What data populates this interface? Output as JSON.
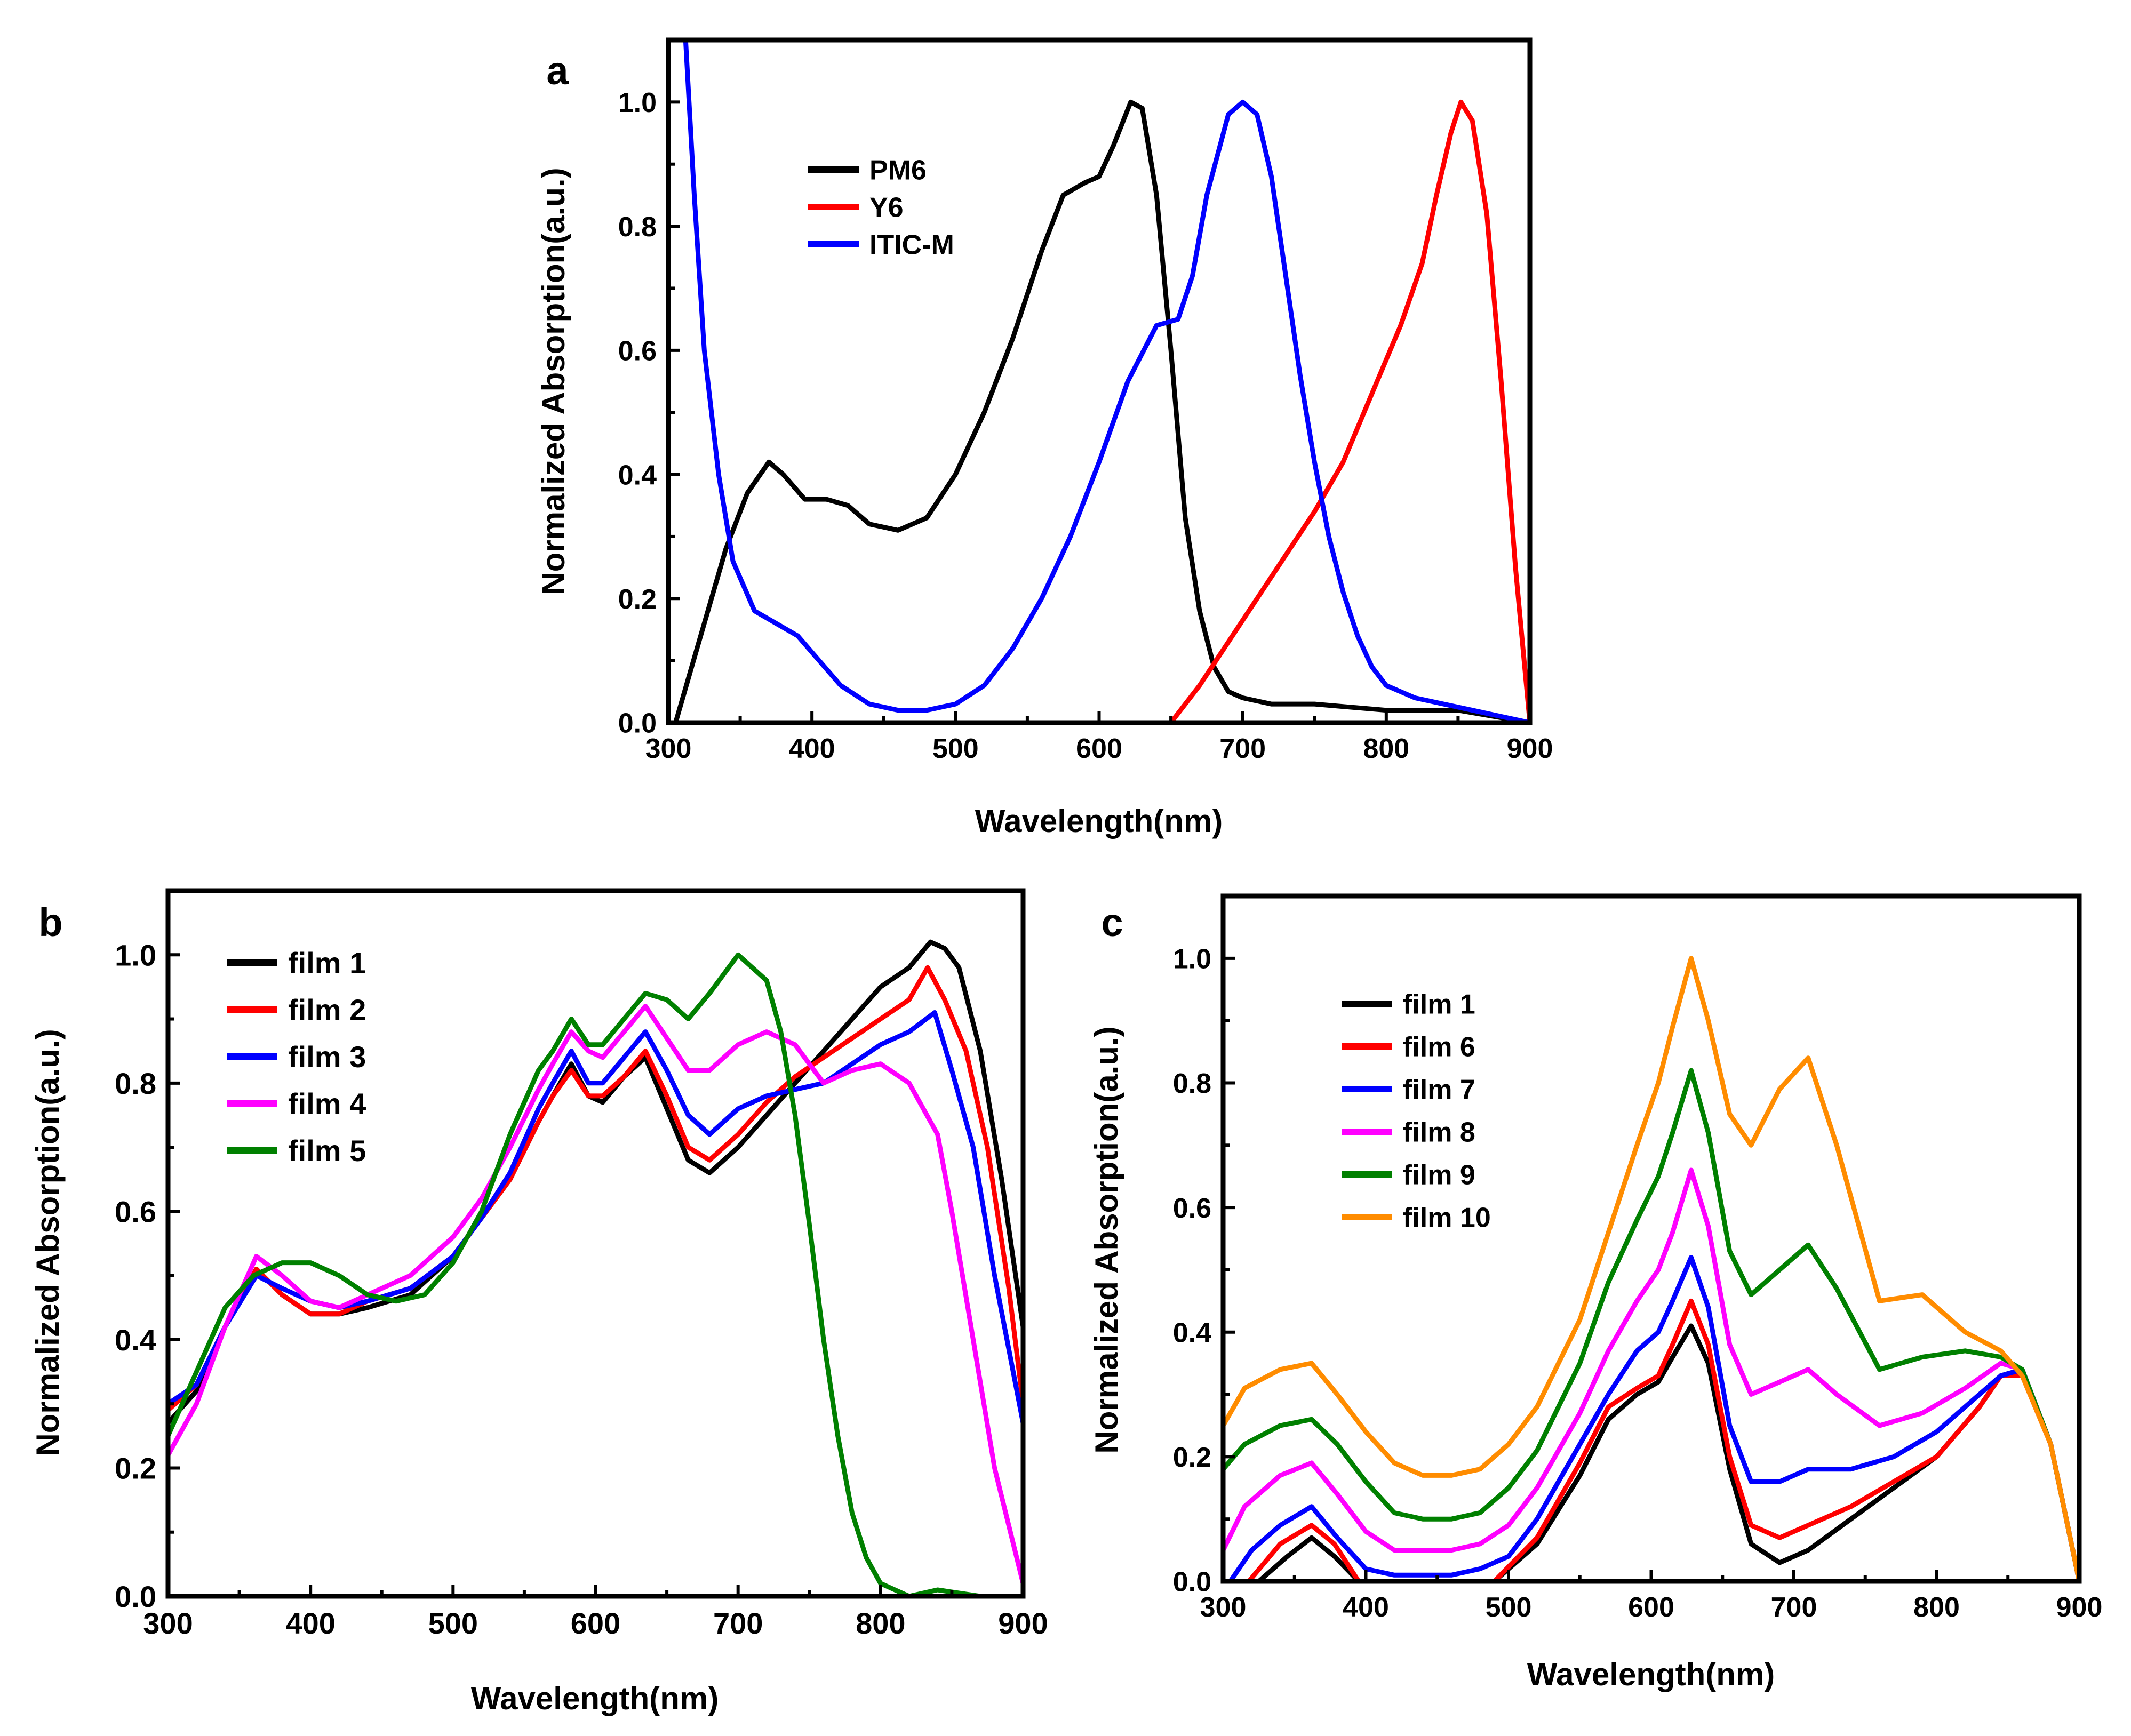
{
  "chart_data": [
    {
      "panel": "a",
      "type": "line",
      "xlabel": "Wavelength(nm)",
      "ylabel": "Normalized Absorption(a.u.)",
      "xlim": [
        300,
        900
      ],
      "ylim": [
        0.0,
        1.1
      ],
      "xticks": [
        300,
        400,
        500,
        600,
        700,
        800,
        900
      ],
      "xtick_labels": [
        "300",
        "400",
        "500",
        "600",
        "700",
        "800",
        "900"
      ],
      "yticks": [
        0.0,
        0.2,
        0.4,
        0.6,
        0.8,
        1.0
      ],
      "ytick_labels": [
        "0.0",
        "0.2",
        "0.4",
        "0.6",
        "0.8",
        "1.0"
      ],
      "legend_position": "upper-left",
      "series": [
        {
          "name": "PM6",
          "color": "#000000",
          "x": [
            305,
            320,
            340,
            355,
            370,
            380,
            395,
            410,
            425,
            440,
            460,
            480,
            500,
            520,
            540,
            560,
            575,
            590,
            600,
            610,
            622,
            630,
            640,
            650,
            660,
            670,
            680,
            690,
            700,
            720,
            750,
            800,
            850,
            900
          ],
          "y": [
            0.0,
            0.12,
            0.28,
            0.37,
            0.42,
            0.4,
            0.36,
            0.36,
            0.35,
            0.32,
            0.31,
            0.33,
            0.4,
            0.5,
            0.62,
            0.76,
            0.85,
            0.87,
            0.88,
            0.93,
            1.0,
            0.99,
            0.85,
            0.6,
            0.33,
            0.18,
            0.09,
            0.05,
            0.04,
            0.03,
            0.03,
            0.02,
            0.02,
            0.0
          ]
        },
        {
          "name": "Y6",
          "color": "#ff0000",
          "x": [
            650,
            670,
            690,
            710,
            730,
            750,
            770,
            790,
            810,
            825,
            835,
            845,
            852,
            860,
            870,
            880,
            890,
            900
          ],
          "y": [
            0.0,
            0.06,
            0.13,
            0.2,
            0.27,
            0.34,
            0.42,
            0.53,
            0.64,
            0.74,
            0.85,
            0.95,
            1.0,
            0.97,
            0.82,
            0.55,
            0.25,
            0.0
          ]
        },
        {
          "name": "ITIC-M",
          "color": "#0000ff",
          "x": [
            312,
            318,
            325,
            335,
            345,
            360,
            375,
            390,
            405,
            420,
            440,
            460,
            480,
            500,
            520,
            540,
            560,
            580,
            600,
            620,
            640,
            655,
            665,
            675,
            690,
            700,
            710,
            720,
            730,
            740,
            750,
            760,
            770,
            780,
            790,
            800,
            820,
            840,
            860,
            880,
            900
          ],
          "y": [
            1.1,
            0.85,
            0.6,
            0.4,
            0.26,
            0.18,
            0.16,
            0.14,
            0.1,
            0.06,
            0.03,
            0.02,
            0.02,
            0.03,
            0.06,
            0.12,
            0.2,
            0.3,
            0.42,
            0.55,
            0.64,
            0.65,
            0.72,
            0.85,
            0.98,
            1.0,
            0.98,
            0.88,
            0.72,
            0.56,
            0.42,
            0.3,
            0.21,
            0.14,
            0.09,
            0.06,
            0.04,
            0.03,
            0.02,
            0.01,
            0.0
          ]
        }
      ]
    },
    {
      "panel": "b",
      "type": "line",
      "xlabel": "Wavelength(nm)",
      "ylabel": "Normalized Absorption(a.u.)",
      "xlim": [
        300,
        900
      ],
      "ylim": [
        0.0,
        1.1
      ],
      "xticks": [
        300,
        400,
        500,
        600,
        700,
        800,
        900
      ],
      "xtick_labels": [
        "300",
        "400",
        "500",
        "600",
        "700",
        "800",
        "900"
      ],
      "yticks": [
        0.0,
        0.2,
        0.4,
        0.6,
        0.8,
        1.0
      ],
      "ytick_labels": [
        "0.0",
        "0.2",
        "0.4",
        "0.6",
        "0.8",
        "1.0"
      ],
      "legend_position": "upper-left",
      "series": [
        {
          "name": "film 1",
          "color": "#000000",
          "x": [
            300,
            320,
            340,
            362,
            380,
            400,
            420,
            440,
            470,
            500,
            520,
            540,
            560,
            570,
            583,
            595,
            605,
            620,
            635,
            650,
            665,
            680,
            700,
            720,
            740,
            760,
            780,
            800,
            820,
            835,
            845,
            855,
            870,
            885,
            900
          ],
          "y": [
            0.27,
            0.32,
            0.42,
            0.51,
            0.47,
            0.44,
            0.44,
            0.45,
            0.47,
            0.53,
            0.59,
            0.65,
            0.74,
            0.78,
            0.83,
            0.78,
            0.77,
            0.81,
            0.84,
            0.76,
            0.68,
            0.66,
            0.7,
            0.75,
            0.8,
            0.85,
            0.9,
            0.95,
            0.98,
            1.02,
            1.01,
            0.98,
            0.85,
            0.65,
            0.42
          ]
        },
        {
          "name": "film 2",
          "color": "#ff0000",
          "x": [
            300,
            320,
            340,
            362,
            380,
            400,
            420,
            440,
            470,
            500,
            520,
            540,
            560,
            570,
            583,
            595,
            605,
            620,
            635,
            650,
            665,
            680,
            700,
            720,
            740,
            760,
            780,
            800,
            820,
            833,
            845,
            860,
            875,
            890,
            900
          ],
          "y": [
            0.29,
            0.33,
            0.42,
            0.51,
            0.47,
            0.44,
            0.44,
            0.46,
            0.48,
            0.53,
            0.59,
            0.65,
            0.74,
            0.78,
            0.82,
            0.78,
            0.78,
            0.81,
            0.85,
            0.78,
            0.7,
            0.68,
            0.72,
            0.77,
            0.81,
            0.84,
            0.87,
            0.9,
            0.93,
            0.98,
            0.93,
            0.85,
            0.7,
            0.48,
            0.3
          ]
        },
        {
          "name": "film 3",
          "color": "#0000ff",
          "x": [
            300,
            320,
            340,
            362,
            380,
            400,
            420,
            440,
            470,
            500,
            520,
            540,
            560,
            570,
            583,
            595,
            605,
            620,
            635,
            650,
            665,
            680,
            700,
            720,
            740,
            760,
            780,
            800,
            820,
            838,
            850,
            865,
            880,
            900
          ],
          "y": [
            0.3,
            0.33,
            0.42,
            0.5,
            0.48,
            0.46,
            0.45,
            0.46,
            0.48,
            0.53,
            0.59,
            0.66,
            0.76,
            0.8,
            0.85,
            0.8,
            0.8,
            0.84,
            0.88,
            0.82,
            0.75,
            0.72,
            0.76,
            0.78,
            0.79,
            0.8,
            0.83,
            0.86,
            0.88,
            0.91,
            0.82,
            0.7,
            0.5,
            0.27
          ]
        },
        {
          "name": "film 4",
          "color": "#ff00ff",
          "x": [
            300,
            320,
            340,
            362,
            380,
            400,
            420,
            440,
            470,
            500,
            520,
            540,
            560,
            570,
            583,
            595,
            605,
            620,
            635,
            650,
            665,
            680,
            700,
            720,
            740,
            760,
            780,
            800,
            820,
            830,
            840,
            850,
            865,
            880,
            900
          ],
          "y": [
            0.22,
            0.3,
            0.42,
            0.53,
            0.5,
            0.46,
            0.45,
            0.47,
            0.5,
            0.56,
            0.62,
            0.7,
            0.79,
            0.83,
            0.88,
            0.85,
            0.84,
            0.88,
            0.92,
            0.87,
            0.82,
            0.82,
            0.86,
            0.88,
            0.86,
            0.8,
            0.82,
            0.83,
            0.8,
            0.76,
            0.72,
            0.6,
            0.4,
            0.2,
            0.02
          ]
        },
        {
          "name": "film 5",
          "color": "#008000",
          "x": [
            300,
            320,
            340,
            360,
            380,
            400,
            420,
            440,
            460,
            480,
            500,
            520,
            540,
            560,
            570,
            583,
            595,
            605,
            620,
            635,
            650,
            665,
            680,
            700,
            720,
            730,
            740,
            750,
            760,
            770,
            780,
            790,
            800,
            820,
            840,
            870,
            900
          ],
          "y": [
            0.25,
            0.35,
            0.45,
            0.5,
            0.52,
            0.52,
            0.5,
            0.47,
            0.46,
            0.47,
            0.52,
            0.6,
            0.72,
            0.82,
            0.85,
            0.9,
            0.86,
            0.86,
            0.9,
            0.94,
            0.93,
            0.9,
            0.94,
            1.0,
            0.96,
            0.88,
            0.75,
            0.58,
            0.4,
            0.25,
            0.13,
            0.06,
            0.02,
            0.0,
            0.01,
            0.0,
            0.0
          ]
        }
      ]
    },
    {
      "panel": "c",
      "type": "line",
      "xlabel": "Wavelength(nm)",
      "ylabel": "Normalized Absorption(a.u.)",
      "xlim": [
        300,
        900
      ],
      "ylim": [
        0.0,
        1.1
      ],
      "xticks": [
        300,
        400,
        500,
        600,
        700,
        800,
        900
      ],
      "xtick_labels": [
        "300",
        "400",
        "500",
        "600",
        "700",
        "800",
        "900"
      ],
      "yticks": [
        0.0,
        0.2,
        0.4,
        0.6,
        0.8,
        1.0
      ],
      "ytick_labels": [
        "0.0",
        "0.2",
        "0.4",
        "0.6",
        "0.8",
        "1.0"
      ],
      "legend_position": "upper-left",
      "series": [
        {
          "name": "film 1",
          "color": "#000000",
          "x": [
            325,
            345,
            362,
            378,
            395,
            420,
            460,
            490,
            520,
            550,
            570,
            590,
            605,
            615,
            628,
            640,
            655,
            670,
            690,
            710,
            740,
            770,
            800,
            830,
            845,
            860,
            880,
            900
          ],
          "y": [
            0.0,
            0.04,
            0.07,
            0.04,
            0.0,
            0.0,
            0.0,
            0.0,
            0.06,
            0.17,
            0.26,
            0.3,
            0.32,
            0.36,
            0.41,
            0.35,
            0.18,
            0.06,
            0.03,
            0.05,
            0.1,
            0.15,
            0.2,
            0.28,
            0.33,
            0.34,
            0.22,
            0.0
          ]
        },
        {
          "name": "film 6",
          "color": "#ff0000",
          "x": [
            318,
            340,
            362,
            378,
            395,
            420,
            460,
            490,
            520,
            550,
            570,
            590,
            605,
            615,
            628,
            640,
            655,
            670,
            690,
            710,
            740,
            770,
            800,
            830,
            845,
            860,
            880,
            900
          ],
          "y": [
            0.0,
            0.06,
            0.09,
            0.06,
            0.0,
            0.0,
            0.0,
            0.0,
            0.07,
            0.19,
            0.28,
            0.31,
            0.33,
            0.38,
            0.45,
            0.38,
            0.2,
            0.09,
            0.07,
            0.09,
            0.12,
            0.16,
            0.2,
            0.28,
            0.33,
            0.33,
            0.22,
            0.0
          ]
        },
        {
          "name": "film 7",
          "color": "#0000ff",
          "x": [
            305,
            320,
            340,
            362,
            380,
            400,
            420,
            440,
            460,
            480,
            500,
            520,
            550,
            570,
            590,
            605,
            615,
            628,
            640,
            655,
            670,
            690,
            710,
            740,
            770,
            800,
            830,
            845,
            860,
            880,
            900
          ],
          "y": [
            0.0,
            0.05,
            0.09,
            0.12,
            0.07,
            0.02,
            0.01,
            0.01,
            0.01,
            0.02,
            0.04,
            0.1,
            0.22,
            0.3,
            0.37,
            0.4,
            0.45,
            0.52,
            0.44,
            0.25,
            0.16,
            0.16,
            0.18,
            0.18,
            0.2,
            0.24,
            0.3,
            0.33,
            0.34,
            0.22,
            0.0
          ]
        },
        {
          "name": "film 8",
          "color": "#ff00ff",
          "x": [
            300,
            315,
            340,
            362,
            380,
            400,
            420,
            440,
            460,
            480,
            500,
            520,
            550,
            570,
            590,
            605,
            615,
            628,
            640,
            655,
            670,
            690,
            710,
            730,
            760,
            790,
            820,
            845,
            860,
            880,
            900
          ],
          "y": [
            0.05,
            0.12,
            0.17,
            0.19,
            0.14,
            0.08,
            0.05,
            0.05,
            0.05,
            0.06,
            0.09,
            0.15,
            0.27,
            0.37,
            0.45,
            0.5,
            0.56,
            0.66,
            0.57,
            0.38,
            0.3,
            0.32,
            0.34,
            0.3,
            0.25,
            0.27,
            0.31,
            0.35,
            0.34,
            0.22,
            0.0
          ]
        },
        {
          "name": "film 9",
          "color": "#008000",
          "x": [
            300,
            315,
            340,
            362,
            380,
            400,
            420,
            440,
            460,
            480,
            500,
            520,
            550,
            570,
            590,
            605,
            615,
            628,
            640,
            655,
            670,
            690,
            710,
            730,
            760,
            790,
            820,
            845,
            860,
            880,
            900
          ],
          "y": [
            0.18,
            0.22,
            0.25,
            0.26,
            0.22,
            0.16,
            0.11,
            0.1,
            0.1,
            0.11,
            0.15,
            0.21,
            0.35,
            0.48,
            0.58,
            0.65,
            0.72,
            0.82,
            0.72,
            0.53,
            0.46,
            0.5,
            0.54,
            0.47,
            0.34,
            0.36,
            0.37,
            0.36,
            0.34,
            0.22,
            0.0
          ]
        },
        {
          "name": "film 10",
          "color": "#ff8c00",
          "x": [
            300,
            315,
            340,
            362,
            380,
            400,
            420,
            440,
            460,
            480,
            500,
            520,
            550,
            570,
            590,
            605,
            615,
            628,
            640,
            655,
            670,
            690,
            710,
            730,
            760,
            790,
            820,
            845,
            860,
            880,
            900
          ],
          "y": [
            0.25,
            0.31,
            0.34,
            0.35,
            0.3,
            0.24,
            0.19,
            0.17,
            0.17,
            0.18,
            0.22,
            0.28,
            0.42,
            0.56,
            0.7,
            0.8,
            0.89,
            1.0,
            0.9,
            0.75,
            0.7,
            0.79,
            0.84,
            0.7,
            0.45,
            0.46,
            0.4,
            0.37,
            0.33,
            0.22,
            0.0
          ]
        }
      ]
    }
  ]
}
